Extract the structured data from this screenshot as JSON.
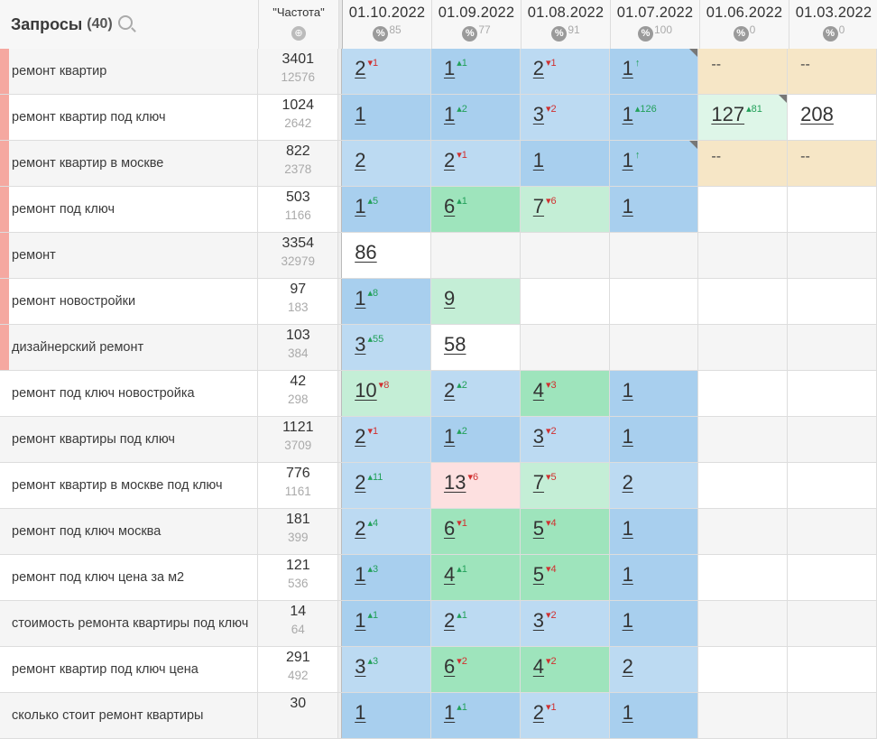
{
  "header": {
    "title": "Запросы",
    "count": "(40)",
    "freq_label": "\"Частота\"",
    "dates": [
      {
        "date": "01.10.2022",
        "pct": "85"
      },
      {
        "date": "01.09.2022",
        "pct": "77"
      },
      {
        "date": "01.08.2022",
        "pct": "91"
      },
      {
        "date": "01.07.2022",
        "pct": "100"
      },
      {
        "date": "01.06.2022",
        "pct": "0"
      },
      {
        "date": "01.03.2022",
        "pct": "0"
      }
    ]
  },
  "icons": {
    "search": "search-icon",
    "globe": "globe-icon",
    "percent": "percent-icon"
  },
  "colors": {
    "mark": "#f5a8a0",
    "blue": "#a8cfee",
    "green": "#9ee4bc",
    "pink": "#fde0e0",
    "tan": "#f6e6c6"
  },
  "rows": [
    {
      "q": "ремонт квартир",
      "f1": "3401",
      "f2": "12576",
      "mark": true,
      "cells": [
        {
          "v": "2",
          "c": "1",
          "dir": "dn",
          "cls": "c-blue2"
        },
        {
          "v": "1",
          "c": "1",
          "dir": "up",
          "cls": "c-blue1"
        },
        {
          "v": "2",
          "c": "1",
          "dir": "dn",
          "cls": "c-blue2"
        },
        {
          "v": "1",
          "c": "↑",
          "dir": "up",
          "cls": "c-blue1",
          "corner": true
        },
        {
          "dash": "--",
          "cls": "c-tan"
        },
        {
          "dash": "--",
          "cls": "c-tan"
        }
      ]
    },
    {
      "q": "ремонт квартир под ключ",
      "f1": "1024",
      "f2": "2642",
      "mark": true,
      "cells": [
        {
          "v": "1",
          "cls": "c-blue1"
        },
        {
          "v": "1",
          "c": "2",
          "dir": "up",
          "cls": "c-blue1"
        },
        {
          "v": "3",
          "c": "2",
          "dir": "dn",
          "cls": "c-blue2"
        },
        {
          "v": "1",
          "c": "126",
          "dir": "up",
          "cls": "c-blue1"
        },
        {
          "v": "127",
          "c": "81",
          "dir": "up",
          "cls": "c-green3",
          "corner": true
        },
        {
          "v": "208",
          "cls": "c-white"
        }
      ]
    },
    {
      "q": "ремонт квартир в москве",
      "f1": "822",
      "f2": "2378",
      "mark": true,
      "cells": [
        {
          "v": "2",
          "cls": "c-blue2"
        },
        {
          "v": "2",
          "c": "1",
          "dir": "dn",
          "cls": "c-blue2"
        },
        {
          "v": "1",
          "cls": "c-blue1"
        },
        {
          "v": "1",
          "c": "↑",
          "dir": "up",
          "cls": "c-blue1",
          "corner": true
        },
        {
          "dash": "--",
          "cls": "c-tan"
        },
        {
          "dash": "--",
          "cls": "c-tan"
        }
      ]
    },
    {
      "q": "ремонт под ключ",
      "f1": "503",
      "f2": "1166",
      "mark": true,
      "cells": [
        {
          "v": "1",
          "c": "5",
          "dir": "up",
          "cls": "c-blue1"
        },
        {
          "v": "6",
          "c": "1",
          "dir": "up",
          "cls": "c-green1"
        },
        {
          "v": "7",
          "c": "6",
          "dir": "dn",
          "cls": "c-green2"
        },
        {
          "v": "1",
          "cls": "c-blue1"
        },
        {
          "cls": "c-empty"
        },
        {
          "cls": "c-empty"
        }
      ]
    },
    {
      "q": "ремонт",
      "f1": "3354",
      "f2": "32979",
      "mark": true,
      "cells": [
        {
          "v": "86",
          "cls": "c-white"
        },
        {
          "cls": "c-empty"
        },
        {
          "cls": "c-empty"
        },
        {
          "cls": "c-empty"
        },
        {
          "cls": "c-empty"
        },
        {
          "cls": "c-empty"
        }
      ]
    },
    {
      "q": "ремонт новостройки",
      "f1": "97",
      "f2": "183",
      "mark": true,
      "cells": [
        {
          "v": "1",
          "c": "8",
          "dir": "up",
          "cls": "c-blue1"
        },
        {
          "v": "9",
          "cls": "c-green2"
        },
        {
          "cls": "c-empty"
        },
        {
          "cls": "c-empty"
        },
        {
          "cls": "c-empty"
        },
        {
          "cls": "c-empty"
        }
      ]
    },
    {
      "q": "дизайнерский ремонт",
      "f1": "103",
      "f2": "384",
      "mark": true,
      "cells": [
        {
          "v": "3",
          "c": "55",
          "dir": "up",
          "cls": "c-blue2"
        },
        {
          "v": "58",
          "cls": "c-white"
        },
        {
          "cls": "c-empty"
        },
        {
          "cls": "c-empty"
        },
        {
          "cls": "c-empty"
        },
        {
          "cls": "c-empty"
        }
      ]
    },
    {
      "q": "ремонт под ключ новостройка",
      "f1": "42",
      "f2": "298",
      "mark": false,
      "cells": [
        {
          "v": "10",
          "c": "8",
          "dir": "dn",
          "cls": "c-green2"
        },
        {
          "v": "2",
          "c": "2",
          "dir": "up",
          "cls": "c-blue2"
        },
        {
          "v": "4",
          "c": "3",
          "dir": "dn",
          "cls": "c-green1"
        },
        {
          "v": "1",
          "cls": "c-blue1"
        },
        {
          "cls": "c-empty"
        },
        {
          "cls": "c-empty"
        }
      ]
    },
    {
      "q": "ремонт квартиры под ключ",
      "f1": "1121",
      "f2": "3709",
      "mark": false,
      "cells": [
        {
          "v": "2",
          "c": "1",
          "dir": "dn",
          "cls": "c-blue2"
        },
        {
          "v": "1",
          "c": "2",
          "dir": "up",
          "cls": "c-blue1"
        },
        {
          "v": "3",
          "c": "2",
          "dir": "dn",
          "cls": "c-blue2"
        },
        {
          "v": "1",
          "cls": "c-blue1"
        },
        {
          "cls": "c-empty"
        },
        {
          "cls": "c-empty"
        }
      ]
    },
    {
      "q": "ремонт квартир в москве под ключ",
      "f1": "776",
      "f2": "1161",
      "mark": false,
      "cells": [
        {
          "v": "2",
          "c": "11",
          "dir": "up",
          "cls": "c-blue2"
        },
        {
          "v": "13",
          "c": "6",
          "dir": "dn",
          "cls": "c-pink"
        },
        {
          "v": "7",
          "c": "5",
          "dir": "dn",
          "cls": "c-green2"
        },
        {
          "v": "2",
          "cls": "c-blue2"
        },
        {
          "cls": "c-empty"
        },
        {
          "cls": "c-empty"
        }
      ]
    },
    {
      "q": "ремонт под ключ москва",
      "f1": "181",
      "f2": "399",
      "mark": false,
      "cells": [
        {
          "v": "2",
          "c": "4",
          "dir": "up",
          "cls": "c-blue2"
        },
        {
          "v": "6",
          "c": "1",
          "dir": "dn",
          "cls": "c-green1"
        },
        {
          "v": "5",
          "c": "4",
          "dir": "dn",
          "cls": "c-green1"
        },
        {
          "v": "1",
          "cls": "c-blue1"
        },
        {
          "cls": "c-empty"
        },
        {
          "cls": "c-empty"
        }
      ]
    },
    {
      "q": "ремонт под ключ цена за м2",
      "f1": "121",
      "f2": "536",
      "mark": false,
      "cells": [
        {
          "v": "1",
          "c": "3",
          "dir": "up",
          "cls": "c-blue1"
        },
        {
          "v": "4",
          "c": "1",
          "dir": "up",
          "cls": "c-green1"
        },
        {
          "v": "5",
          "c": "4",
          "dir": "dn",
          "cls": "c-green1"
        },
        {
          "v": "1",
          "cls": "c-blue1"
        },
        {
          "cls": "c-empty"
        },
        {
          "cls": "c-empty"
        }
      ]
    },
    {
      "q": "стоимость ремонта квартиры под ключ",
      "f1": "14",
      "f2": "64",
      "mark": false,
      "cells": [
        {
          "v": "1",
          "c": "1",
          "dir": "up",
          "cls": "c-blue1"
        },
        {
          "v": "2",
          "c": "1",
          "dir": "up",
          "cls": "c-blue2"
        },
        {
          "v": "3",
          "c": "2",
          "dir": "dn",
          "cls": "c-blue2"
        },
        {
          "v": "1",
          "cls": "c-blue1"
        },
        {
          "cls": "c-empty"
        },
        {
          "cls": "c-empty"
        }
      ]
    },
    {
      "q": "ремонт квартир под ключ цена",
      "f1": "291",
      "f2": "492",
      "mark": false,
      "cells": [
        {
          "v": "3",
          "c": "3",
          "dir": "up",
          "cls": "c-blue2"
        },
        {
          "v": "6",
          "c": "2",
          "dir": "dn",
          "cls": "c-green1"
        },
        {
          "v": "4",
          "c": "2",
          "dir": "dn",
          "cls": "c-green1"
        },
        {
          "v": "2",
          "cls": "c-blue2"
        },
        {
          "cls": "c-empty"
        },
        {
          "cls": "c-empty"
        }
      ]
    },
    {
      "q": "сколько стоит ремонт квартиры",
      "f1": "30",
      "f2": "",
      "mark": false,
      "cells": [
        {
          "v": "1",
          "cls": "c-blue1"
        },
        {
          "v": "1",
          "c": "1",
          "dir": "up",
          "cls": "c-blue1"
        },
        {
          "v": "2",
          "c": "1",
          "dir": "dn",
          "cls": "c-blue2"
        },
        {
          "v": "1",
          "cls": "c-blue1"
        },
        {
          "cls": "c-empty"
        },
        {
          "cls": "c-empty"
        }
      ]
    }
  ]
}
